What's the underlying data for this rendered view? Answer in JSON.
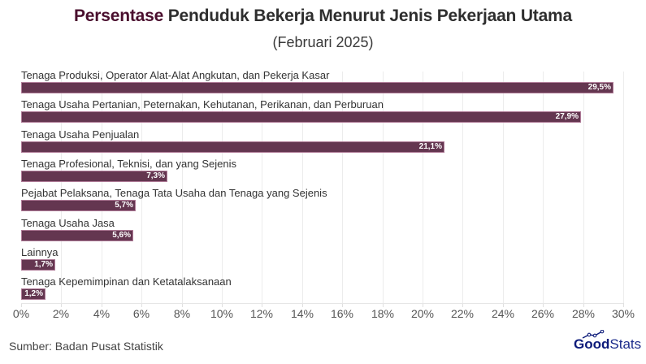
{
  "header": {
    "title_accent": "Persentase",
    "title_rest": " Penduduk Bekerja Menurut Jenis Pekerjaan Utama",
    "subtitle": "(Februari 2025)"
  },
  "colors": {
    "bar": "#643650",
    "title_accent": "#4a0f2e",
    "logo": "#0d1b7a"
  },
  "chart_data": {
    "type": "bar",
    "orientation": "horizontal",
    "title": "Persentase Penduduk Bekerja Menurut Jenis Pekerjaan Utama",
    "subtitle": "(Februari 2025)",
    "categories": [
      "Tenaga Produksi, Operator Alat-Alat Angkutan, dan Pekerja Kasar",
      "Tenaga Usaha Pertanian, Peternakan, Kehutanan, Perikanan, dan Perburuan",
      "Tenaga Usaha Penjualan",
      "Tenaga Profesional, Teknisi, dan yang Sejenis",
      "Pejabat Pelaksana, Tenaga Tata Usaha dan Tenaga yang Sejenis",
      "Tenaga Usaha Jasa",
      "Lainnya",
      "Tenaga Kepemimpinan dan Ketatalaksanaan"
    ],
    "values": [
      29.5,
      27.9,
      21.1,
      7.3,
      5.7,
      5.6,
      1.7,
      1.2
    ],
    "value_labels": [
      "29,5%",
      "27,9%",
      "21,1%",
      "7,3%",
      "5,7%",
      "5,6%",
      "1,7%",
      "1,2%"
    ],
    "xlabel": "",
    "ylabel": "",
    "xlim": [
      0,
      30
    ],
    "xticks": [
      "0%",
      "2%",
      "4%",
      "6%",
      "8%",
      "10%",
      "12%",
      "14%",
      "16%",
      "18%",
      "20%",
      "22%",
      "24%",
      "26%",
      "28%",
      "30%"
    ],
    "grid": true,
    "legend": "none"
  },
  "footer": {
    "source": "Sumber: Badan Pusat Statistik",
    "logo_good": "Good",
    "logo_stats": "Stats"
  }
}
